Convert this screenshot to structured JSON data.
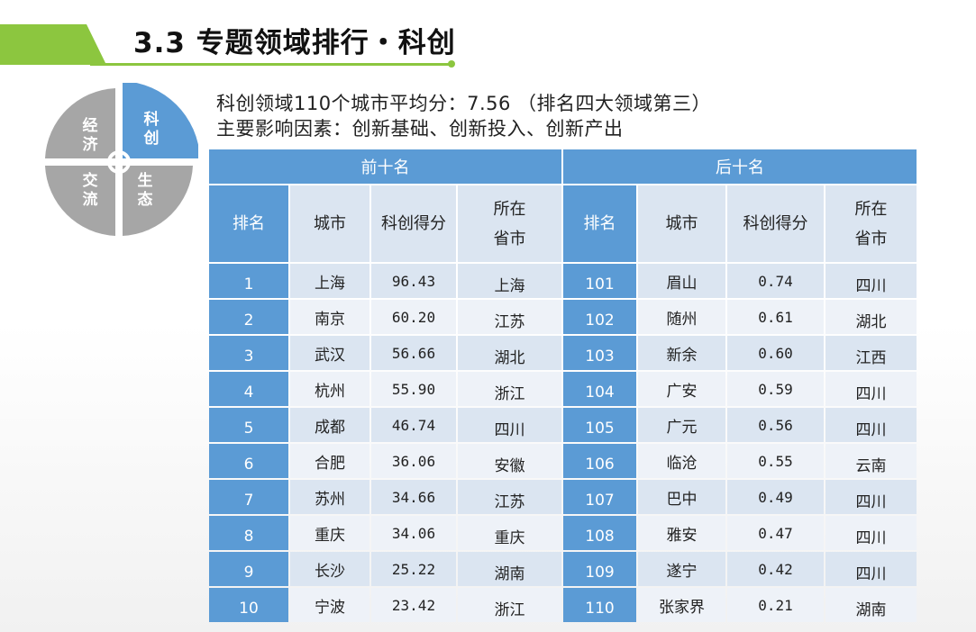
{
  "header": {
    "title": "3.3 专题领域排行・科创"
  },
  "wheel": {
    "segments": [
      {
        "name": "经济",
        "chars": [
          "经",
          "济"
        ],
        "highlight": false
      },
      {
        "name": "科创",
        "chars": [
          "科",
          "创"
        ],
        "highlight": true
      },
      {
        "name": "交流",
        "chars": [
          "交",
          "流"
        ],
        "highlight": false
      },
      {
        "name": "生态",
        "chars": [
          "生",
          "态"
        ],
        "highlight": false
      }
    ],
    "colors": {
      "highlight": "#5b9bd5",
      "normal": "#a6a6a6"
    }
  },
  "summary": {
    "line1": "科创领域110个城市平均分：7.56 （排名四大领域第三）",
    "line2": "主要影响因素：创新基础、创新投入、创新产出"
  },
  "table": {
    "group_top": "前十名",
    "group_bottom": "后十名",
    "col_rank": "排名",
    "col_city": "城市",
    "col_score": "科创得分",
    "col_prov_1": "所在",
    "col_prov_2": "省市",
    "rows": [
      {
        "top": {
          "rank": "1",
          "city": "上海",
          "score": "96.43",
          "prov": "上海"
        },
        "bottom": {
          "rank": "101",
          "city": "眉山",
          "score": "0.74",
          "prov": "四川"
        }
      },
      {
        "top": {
          "rank": "2",
          "city": "南京",
          "score": "60.20",
          "prov": "江苏"
        },
        "bottom": {
          "rank": "102",
          "city": "随州",
          "score": "0.61",
          "prov": "湖北"
        }
      },
      {
        "top": {
          "rank": "3",
          "city": "武汉",
          "score": "56.66",
          "prov": "湖北"
        },
        "bottom": {
          "rank": "103",
          "city": "新余",
          "score": "0.60",
          "prov": "江西"
        }
      },
      {
        "top": {
          "rank": "4",
          "city": "杭州",
          "score": "55.90",
          "prov": "浙江"
        },
        "bottom": {
          "rank": "104",
          "city": "广安",
          "score": "0.59",
          "prov": "四川"
        }
      },
      {
        "top": {
          "rank": "5",
          "city": "成都",
          "score": "46.74",
          "prov": "四川"
        },
        "bottom": {
          "rank": "105",
          "city": "广元",
          "score": "0.56",
          "prov": "四川"
        }
      },
      {
        "top": {
          "rank": "6",
          "city": "合肥",
          "score": "36.06",
          "prov": "安徽"
        },
        "bottom": {
          "rank": "106",
          "city": "临沧",
          "score": "0.55",
          "prov": "云南"
        }
      },
      {
        "top": {
          "rank": "7",
          "city": "苏州",
          "score": "34.66",
          "prov": "江苏"
        },
        "bottom": {
          "rank": "107",
          "city": "巴中",
          "score": "0.49",
          "prov": "四川"
        }
      },
      {
        "top": {
          "rank": "8",
          "city": "重庆",
          "score": "34.06",
          "prov": "重庆"
        },
        "bottom": {
          "rank": "108",
          "city": "雅安",
          "score": "0.47",
          "prov": "四川"
        }
      },
      {
        "top": {
          "rank": "9",
          "city": "长沙",
          "score": "25.22",
          "prov": "湖南"
        },
        "bottom": {
          "rank": "109",
          "city": "遂宁",
          "score": "0.42",
          "prov": "四川"
        }
      },
      {
        "top": {
          "rank": "10",
          "city": "宁波",
          "score": "23.42",
          "prov": "浙江"
        },
        "bottom": {
          "rank": "110",
          "city": "张家界",
          "score": "0.21",
          "prov": "湖南"
        }
      }
    ]
  },
  "colors": {
    "accent_green": "#8cc63f",
    "table_blue": "#5b9bd5",
    "table_light": "#dbe5f1"
  }
}
